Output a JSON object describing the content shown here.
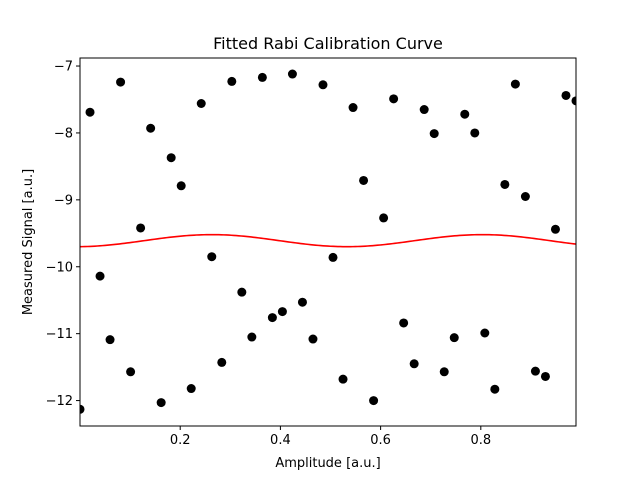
{
  "chart_data": {
    "type": "scatter",
    "title": "Fitted Rabi Calibration Curve",
    "xlabel": "Amplitude [a.u.]",
    "ylabel": "Measured Signal [a.u.]",
    "xlim": [
      0.0,
      0.99
    ],
    "ylim": [
      -12.38,
      -6.88
    ],
    "xticks": [
      0.2,
      0.4,
      0.6,
      0.8
    ],
    "xtick_labels": [
      "0.2",
      "0.4",
      "0.6",
      "0.8"
    ],
    "yticks": [
      -12,
      -11,
      -10,
      -9,
      -8,
      -7
    ],
    "ytick_labels": [
      "−12",
      "−11",
      "−10",
      "−9",
      "−8",
      "−7"
    ],
    "grid": false,
    "legend": "none",
    "series": [
      {
        "kind": "scatter",
        "color": "#000000",
        "marker": "circle",
        "x": [
          0.0,
          0.02,
          0.04,
          0.06,
          0.081,
          0.101,
          0.121,
          0.141,
          0.162,
          0.182,
          0.202,
          0.222,
          0.242,
          0.263,
          0.283,
          0.303,
          0.323,
          0.343,
          0.364,
          0.384,
          0.404,
          0.424,
          0.444,
          0.465,
          0.485,
          0.505,
          0.525,
          0.545,
          0.566,
          0.586,
          0.606,
          0.626,
          0.646,
          0.667,
          0.687,
          0.707,
          0.727,
          0.747,
          0.768,
          0.788,
          0.808,
          0.828,
          0.848,
          0.869,
          0.889,
          0.909,
          0.929,
          0.949,
          0.97,
          0.99
        ],
        "y": [
          -12.13,
          -7.69,
          -10.14,
          -11.09,
          -7.24,
          -11.57,
          -9.42,
          -7.93,
          -12.03,
          -8.37,
          -8.79,
          -11.82,
          -7.56,
          -9.85,
          -11.43,
          -7.23,
          -10.38,
          -11.05,
          -7.17,
          -10.76,
          -10.67,
          -7.12,
          -10.53,
          -11.08,
          -7.28,
          -9.86,
          -11.68,
          -7.62,
          -8.71,
          -12.0,
          -9.27,
          -7.49,
          -10.84,
          -11.45,
          -7.65,
          -8.01,
          -11.57,
          -11.06,
          -7.72,
          -8.0,
          -10.99,
          -11.83,
          -8.77,
          -7.27,
          -8.95,
          -11.56,
          -11.64,
          -9.44,
          -7.44,
          -7.52
        ]
      },
      {
        "kind": "line",
        "color": "#ff0000",
        "fit": {
          "offset": -9.61,
          "amplitude": 0.09,
          "period": 0.54,
          "phase_x": 0.263
        }
      }
    ]
  }
}
